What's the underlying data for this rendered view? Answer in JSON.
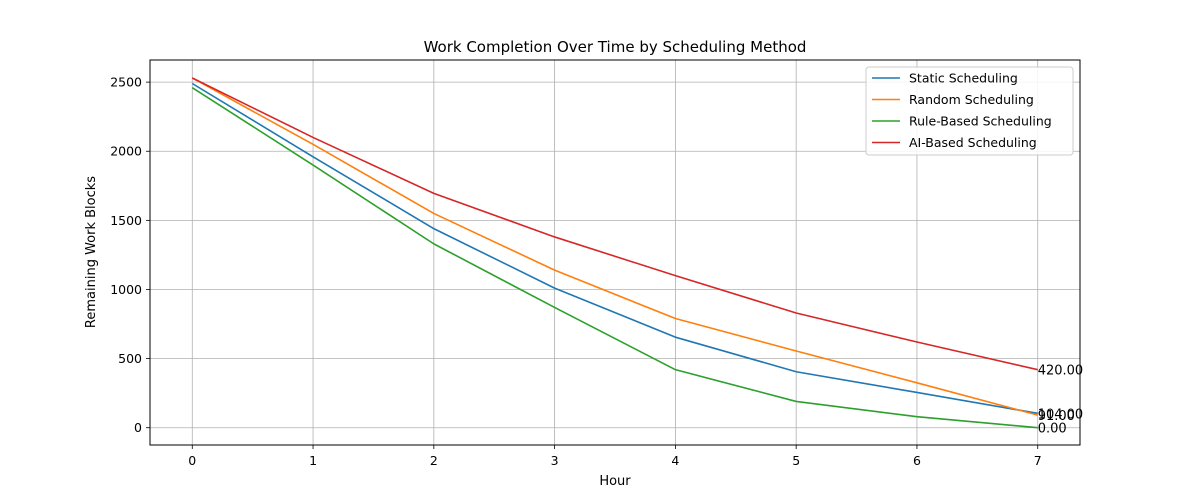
{
  "chart_data": {
    "type": "line",
    "title": "Work Completion Over Time by Scheduling Method",
    "xlabel": "Hour",
    "ylabel": "Remaining Work Blocks",
    "x": [
      0,
      1,
      2,
      3,
      4,
      5,
      6,
      7
    ],
    "xlim": [
      -0.35,
      7.35
    ],
    "ylim": [
      -125,
      2660
    ],
    "xticks": [
      0,
      1,
      2,
      3,
      4,
      5,
      6,
      7
    ],
    "yticks": [
      0,
      500,
      1000,
      1500,
      2000,
      2500
    ],
    "grid": true,
    "legend_position": "top-right",
    "series": [
      {
        "name": "Static Scheduling",
        "color": "#1f77b4",
        "values": [
          2490,
          1960,
          1440,
          1010,
          655,
          405,
          255,
          104
        ]
      },
      {
        "name": "Random Scheduling",
        "color": "#ff7f0e",
        "values": [
          2530,
          2050,
          1550,
          1140,
          790,
          555,
          325,
          91
        ]
      },
      {
        "name": "Rule-Based Scheduling",
        "color": "#2ca02c",
        "values": [
          2460,
          1900,
          1330,
          870,
          420,
          190,
          80,
          0
        ]
      },
      {
        "name": "AI-Based Scheduling",
        "color": "#d62728",
        "values": [
          2530,
          2100,
          1695,
          1380,
          1100,
          830,
          620,
          420
        ]
      }
    ],
    "end_labels": [
      {
        "series": "Static Scheduling",
        "text": "104.00"
      },
      {
        "series": "Random Scheduling",
        "text": "91.00"
      },
      {
        "series": "Rule-Based Scheduling",
        "text": "0.00"
      },
      {
        "series": "AI-Based Scheduling",
        "text": "420.00"
      }
    ]
  }
}
